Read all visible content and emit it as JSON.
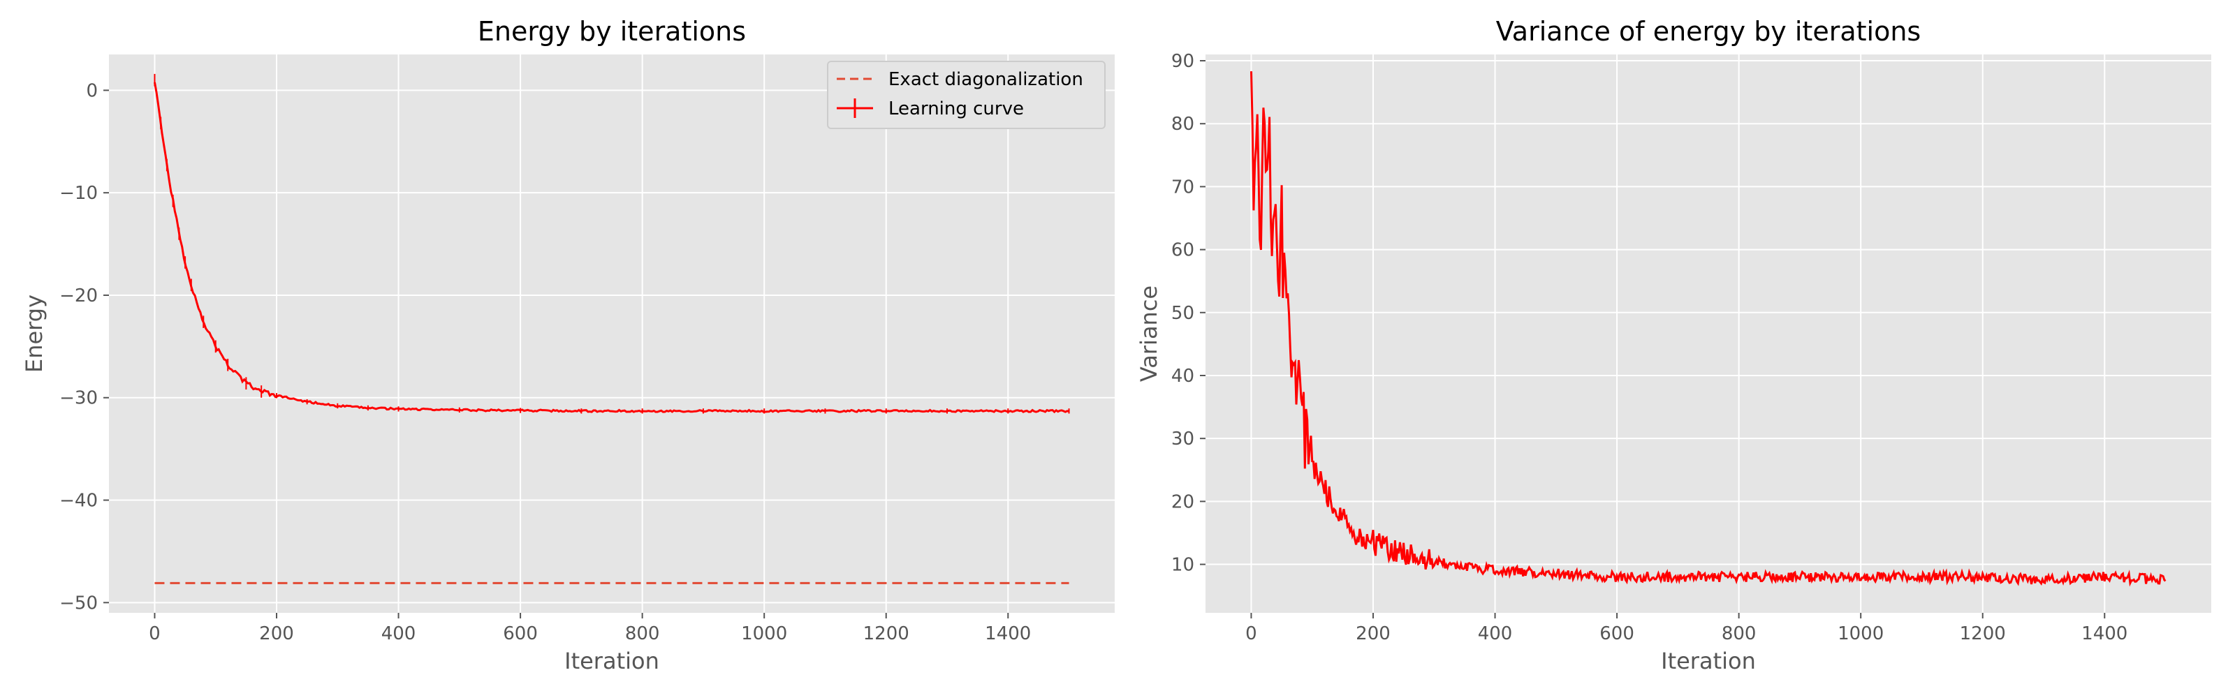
{
  "colors": {
    "series": "#ff0000",
    "exact": "#e24a33",
    "background": "#e5e5e5",
    "grid": "#ffffff"
  },
  "chart_data": [
    {
      "type": "line",
      "title": "Energy by iterations",
      "xlabel": "Iteration",
      "ylabel": "Energy",
      "xlim": [
        -75,
        1575
      ],
      "ylim": [
        -51,
        3.5
      ],
      "xticks": [
        0,
        200,
        400,
        600,
        800,
        1000,
        1200,
        1400
      ],
      "yticks": [
        0,
        -10,
        -20,
        -30,
        -40,
        -50
      ],
      "ytick_labels": [
        "0",
        "−10",
        "−20",
        "−30",
        "−40",
        "−50"
      ],
      "grid": true,
      "legend_position": "top-right",
      "legend": [
        "Exact diagonalization",
        "Learning curve"
      ],
      "series": [
        {
          "name": "Exact diagonalization",
          "style": "dashed",
          "x": [
            0,
            1500
          ],
          "y": [
            -48.1,
            -48.1
          ]
        },
        {
          "name": "Learning curve",
          "style": "solid-with-errorbars",
          "x": [
            0,
            10,
            20,
            30,
            40,
            50,
            60,
            80,
            100,
            120,
            150,
            175,
            200,
            250,
            300,
            350,
            400,
            500,
            600,
            700,
            800,
            900,
            1000,
            1100,
            1200,
            1300,
            1400,
            1500
          ],
          "y": [
            1.0,
            -3.2,
            -7.3,
            -10.8,
            -14.0,
            -16.8,
            -19.0,
            -22.6,
            -25.0,
            -26.8,
            -28.6,
            -29.4,
            -29.8,
            -30.4,
            -30.8,
            -31.0,
            -31.1,
            -31.2,
            -31.25,
            -31.3,
            -31.3,
            -31.3,
            -31.3,
            -31.3,
            -31.3,
            -31.3,
            -31.3,
            -31.3
          ]
        }
      ]
    },
    {
      "type": "line",
      "title": "Variance of energy by iterations",
      "xlabel": "Iteration",
      "ylabel": "Variance",
      "xlim": [
        -75,
        1575
      ],
      "ylim": [
        2.3,
        91
      ],
      "xticks": [
        0,
        200,
        400,
        600,
        800,
        1000,
        1200,
        1400
      ],
      "yticks": [
        10,
        20,
        30,
        40,
        50,
        60,
        70,
        80,
        90
      ],
      "grid": true,
      "series": [
        {
          "color": "#ff0000",
          "x": [
            0,
            5,
            10,
            15,
            20,
            25,
            30,
            35,
            40,
            45,
            50,
            55,
            60,
            70,
            80,
            90,
            100,
            120,
            150,
            175,
            200,
            250,
            300,
            350,
            400,
            500,
            600,
            700,
            800,
            900,
            1000,
            1100,
            1200,
            1300,
            1400,
            1500
          ],
          "y": [
            84,
            66,
            78,
            62,
            80,
            66,
            77,
            60,
            72,
            56,
            64,
            50,
            52,
            42,
            36,
            30,
            26,
            22,
            17,
            14.5,
            13.5,
            12,
            10.5,
            9.5,
            9,
            8.5,
            8,
            8,
            8,
            8,
            8,
            8,
            8,
            7.5,
            8,
            7.5
          ]
        }
      ]
    }
  ]
}
